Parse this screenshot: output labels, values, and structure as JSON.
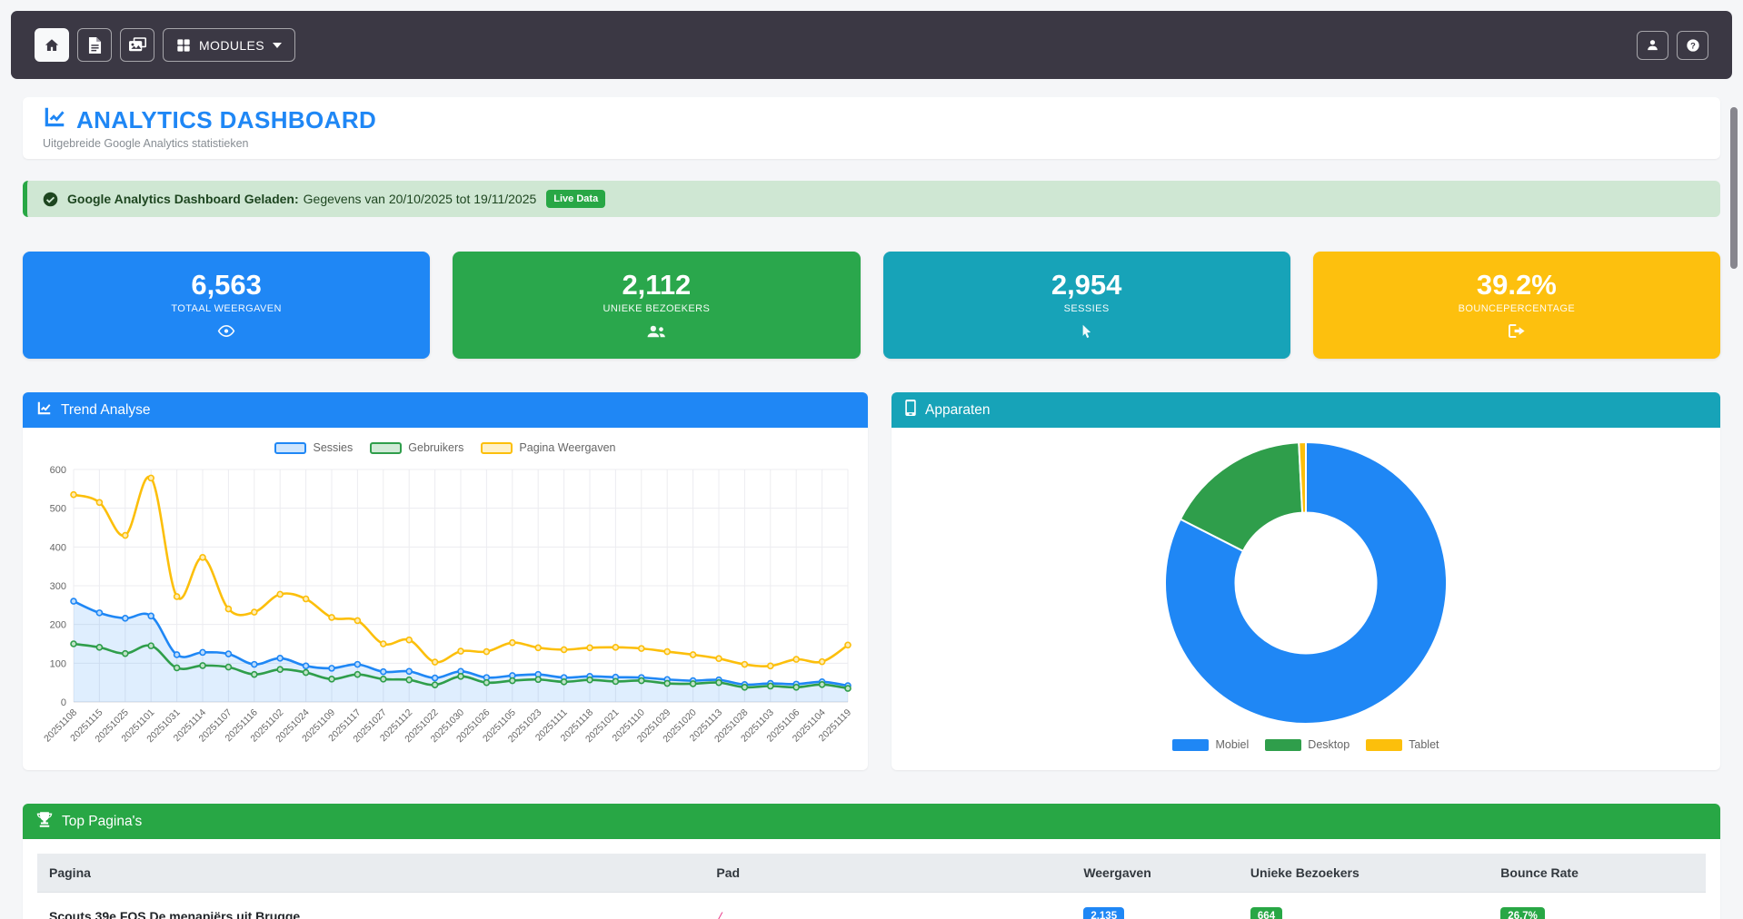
{
  "navbar": {
    "modules_label": "MODULES",
    "icons": [
      "home-icon",
      "file-icon",
      "images-icon",
      "grid-icon",
      "caret-down-icon",
      "user-icon",
      "help-icon"
    ]
  },
  "header": {
    "title": "ANALYTICS DASHBOARD",
    "subtitle": "Uitgebreide Google Analytics statistieken",
    "icon": "chart-line-icon",
    "accent_color": "#1f87f5"
  },
  "alert": {
    "icon": "check-circle-icon",
    "title": "Google Analytics Dashboard Geladen:",
    "message": "Gegevens van 20/10/2025 tot 19/11/2025",
    "badge": "Live Data",
    "accent_color": "#28a745"
  },
  "stats": [
    {
      "value": "6,563",
      "label": "TOTAAL WEERGAVEN",
      "icon": "eye-icon",
      "color": "#1f87f5"
    },
    {
      "value": "2,112",
      "label": "UNIEKE BEZOEKERS",
      "icon": "users-icon",
      "color": "#2aa74c"
    },
    {
      "value": "2,954",
      "label": "SESSIES",
      "icon": "mouse-pointer-icon",
      "color": "#17a3b8"
    },
    {
      "value": "39.2%",
      "label": "BOUNCEPERCENTAGE",
      "icon": "sign-out-icon",
      "color": "#fdc00e"
    }
  ],
  "trend_panel": {
    "title": "Trend Analyse",
    "icon": "chart-line-icon",
    "color": "#1f87f5"
  },
  "devices_panel": {
    "title": "Apparaten",
    "icon": "mobile-icon",
    "color": "#17a3b8"
  },
  "top_pages": {
    "title": "Top Pagina's",
    "icon": "trophy-icon",
    "color": "#28a745",
    "columns": [
      "Pagina",
      "Pad",
      "Weergaven",
      "Unieke Bezoekers",
      "Bounce Rate"
    ],
    "rows": [
      {
        "pagina": "Scouts 39e FOS De menapiërs uit Brugge",
        "pad": "/",
        "weergaven": "2,135",
        "weergaven_color": "#1f87f5",
        "unieke_bezoekers": "664",
        "unieke_bezoekers_color": "#28a745",
        "bounce_rate": "26.7%",
        "bounce_rate_color": "#28a745"
      }
    ]
  },
  "chart_data": [
    {
      "type": "line",
      "title": "Trend Analyse",
      "legend_position": "top",
      "grid": true,
      "ylim": [
        0,
        600
      ],
      "yticks": [
        0,
        100,
        200,
        300,
        400,
        500,
        600
      ],
      "x": [
        "20251108",
        "20251115",
        "20251025",
        "20251101",
        "20251031",
        "20251114",
        "20251107",
        "20251116",
        "20251102",
        "20251024",
        "20251109",
        "20251117",
        "20251027",
        "20251112",
        "20251022",
        "20251030",
        "20251026",
        "20251105",
        "20251023",
        "20251111",
        "20251118",
        "20251021",
        "20251110",
        "20251029",
        "20251020",
        "20251113",
        "20251028",
        "20251103",
        "20251106",
        "20251104",
        "20251119"
      ],
      "series": [
        {
          "name": "Sessies",
          "color": "#1f87f5",
          "fill": true,
          "values": [
            260,
            230,
            216,
            222,
            122,
            128,
            124,
            97,
            113,
            93,
            87,
            97,
            78,
            79,
            62,
            79,
            63,
            68,
            71,
            63,
            66,
            64,
            63,
            58,
            55,
            57,
            45,
            48,
            46,
            52,
            42
          ]
        },
        {
          "name": "Gebruikers",
          "color": "#2f9e4b",
          "fill": false,
          "values": [
            150,
            141,
            125,
            145,
            88,
            94,
            90,
            71,
            84,
            76,
            59,
            71,
            59,
            57,
            44,
            66,
            50,
            55,
            58,
            52,
            57,
            53,
            55,
            48,
            47,
            50,
            38,
            41,
            38,
            45,
            35
          ]
        },
        {
          "name": "Pagina Weergaven",
          "color": "#fcbf0b",
          "fill": false,
          "values": [
            535,
            515,
            430,
            578,
            272,
            373,
            240,
            232,
            278,
            266,
            218,
            210,
            150,
            160,
            103,
            131,
            130,
            153,
            140,
            135,
            140,
            141,
            138,
            130,
            122,
            112,
            97,
            93,
            110,
            104,
            147
          ]
        }
      ]
    },
    {
      "type": "pie",
      "subtype": "doughnut",
      "title": "Apparaten",
      "legend_position": "bottom",
      "labels": [
        "Mobiel",
        "Desktop",
        "Tablet"
      ],
      "values": [
        82.5,
        16.7,
        0.8
      ],
      "unit": "% (estimated from arc angles)",
      "colors": [
        "#1f87f5",
        "#2f9e4b",
        "#fcbf0b"
      ]
    }
  ]
}
